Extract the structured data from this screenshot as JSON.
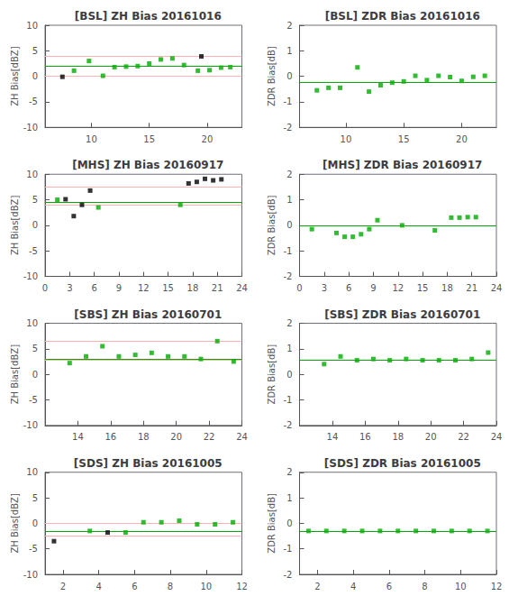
{
  "chart_data": [
    {
      "type": "scatter",
      "title": "[BSL] ZH Bias 20161016",
      "ylabel": "ZH Bias[dBZ]",
      "xlim": [
        6,
        23
      ],
      "ylim": [
        -10,
        10
      ],
      "xticks": [
        10,
        15,
        20
      ],
      "yticks": [
        -10,
        -5,
        0,
        5,
        10
      ],
      "grid": false,
      "series": [
        {
          "type": "hline",
          "color": "#ffb0b0",
          "values": [
            4.0,
            0.0
          ]
        },
        {
          "type": "hline",
          "color": "#00aa00",
          "values": [
            2.0
          ]
        },
        {
          "type": "scatter",
          "marker": "square",
          "color": "#00aa00",
          "x": [
            8.5,
            9.8,
            11.0,
            12.0,
            13.0,
            14.0,
            15.0,
            16.0,
            17.0,
            18.0,
            19.2,
            20.2,
            21.2,
            22.0
          ],
          "values": [
            1.1,
            3.0,
            0.1,
            1.8,
            1.9,
            2.0,
            2.5,
            3.3,
            3.5,
            2.2,
            1.1,
            1.2,
            1.7,
            1.8
          ]
        },
        {
          "type": "scatter",
          "marker": "square",
          "color": "#000000",
          "x": [
            7.5,
            19.5
          ],
          "values": [
            -0.1,
            3.9
          ]
        }
      ]
    },
    {
      "type": "scatter",
      "title": "[BSL] ZDR Bias 20161016",
      "ylabel": "ZDR Bias[dB]",
      "xlim": [
        6,
        23
      ],
      "ylim": [
        -2,
        2
      ],
      "xticks": [
        10,
        15,
        20
      ],
      "yticks": [
        -2,
        -1,
        0,
        1,
        2
      ],
      "grid": false,
      "series": [
        {
          "type": "hline",
          "color": "#00aa00",
          "values": [
            -0.25
          ]
        },
        {
          "type": "scatter",
          "marker": "square",
          "color": "#00aa00",
          "x": [
            7.5,
            8.5,
            9.5,
            11.0,
            12.0,
            13.0,
            14.0,
            15.0,
            16.0,
            17.0,
            18.0,
            19.0,
            20.0,
            21.0,
            22.0
          ],
          "values": [
            -0.55,
            -0.45,
            -0.45,
            0.35,
            -0.6,
            -0.35,
            -0.25,
            -0.2,
            0.02,
            -0.15,
            0.02,
            -0.03,
            -0.18,
            -0.02,
            0.02
          ]
        }
      ]
    },
    {
      "type": "scatter",
      "title": "[MHS] ZH Bias 20160917",
      "ylabel": "ZH Bias[dBZ]",
      "xlim": [
        0,
        24
      ],
      "ylim": [
        -10,
        10
      ],
      "xticks": [
        0,
        3,
        6,
        9,
        12,
        15,
        18,
        21,
        24
      ],
      "yticks": [
        -10,
        -5,
        0,
        5,
        10
      ],
      "grid": false,
      "series": [
        {
          "type": "hline",
          "color": "#ffb0b0",
          "values": [
            7.5,
            4.0
          ]
        },
        {
          "type": "hline",
          "color": "#00aa00",
          "values": [
            4.5
          ]
        },
        {
          "type": "scatter",
          "marker": "square",
          "color": "#00aa00",
          "x": [
            1.5,
            6.5,
            16.5
          ],
          "values": [
            5.0,
            3.5,
            4.0
          ]
        },
        {
          "type": "scatter",
          "marker": "square",
          "color": "#000000",
          "x": [
            2.5,
            3.5,
            4.5,
            5.5,
            17.5,
            18.5,
            19.5,
            20.5,
            21.5
          ],
          "values": [
            5.1,
            1.8,
            4.0,
            6.8,
            8.2,
            8.5,
            9.1,
            8.8,
            9.0
          ]
        }
      ]
    },
    {
      "type": "scatter",
      "title": "[MHS] ZDR Bias 20160917",
      "ylabel": "ZDR Bias[dB]",
      "xlim": [
        0,
        24
      ],
      "ylim": [
        -2,
        2
      ],
      "xticks": [
        0,
        3,
        6,
        9,
        12,
        15,
        18,
        21,
        24
      ],
      "yticks": [
        -2,
        -1,
        0,
        1,
        2
      ],
      "grid": false,
      "series": [
        {
          "type": "hline",
          "color": "#00aa00",
          "values": [
            0.0
          ]
        },
        {
          "type": "scatter",
          "marker": "square",
          "color": "#00aa00",
          "x": [
            1.5,
            4.5,
            5.5,
            6.5,
            7.5,
            8.5,
            9.5,
            12.5,
            16.5,
            18.5,
            19.5,
            20.5,
            21.5
          ],
          "values": [
            -0.15,
            -0.3,
            -0.45,
            -0.45,
            -0.35,
            -0.15,
            0.2,
            0.0,
            -0.2,
            0.3,
            0.3,
            0.32,
            0.32
          ]
        }
      ]
    },
    {
      "type": "scatter",
      "title": "[SBS] ZH Bias 20160701",
      "ylabel": "ZH Bias[dBZ]",
      "xlim": [
        12,
        24
      ],
      "ylim": [
        -10,
        10
      ],
      "xticks": [
        14,
        16,
        18,
        20,
        22,
        24
      ],
      "yticks": [
        -10,
        -5,
        0,
        5,
        10
      ],
      "grid": false,
      "series": [
        {
          "type": "hline",
          "color": "#ffb0b0",
          "values": [
            6.5,
            2.8
          ]
        },
        {
          "type": "hline",
          "color": "#00aa00",
          "values": [
            3.0
          ]
        },
        {
          "type": "scatter",
          "marker": "square",
          "color": "#00aa00",
          "x": [
            13.5,
            14.5,
            15.5,
            16.5,
            17.5,
            18.5,
            19.5,
            20.5,
            21.5,
            22.5,
            23.5
          ],
          "values": [
            2.2,
            3.5,
            5.5,
            3.5,
            3.8,
            4.2,
            3.5,
            3.5,
            3.0,
            6.5,
            2.5
          ]
        }
      ]
    },
    {
      "type": "scatter",
      "title": "[SBS] ZDR Bias 20160701",
      "ylabel": "ZDR Bias[dB]",
      "xlim": [
        12,
        24
      ],
      "ylim": [
        -2,
        2
      ],
      "xticks": [
        14,
        16,
        18,
        20,
        22,
        24
      ],
      "yticks": [
        -2,
        -1,
        0,
        1,
        2
      ],
      "grid": false,
      "series": [
        {
          "type": "hline",
          "color": "#00aa00",
          "values": [
            0.55
          ]
        },
        {
          "type": "scatter",
          "marker": "square",
          "color": "#00aa00",
          "x": [
            13.5,
            14.5,
            15.5,
            16.5,
            17.5,
            18.5,
            19.5,
            20.5,
            21.5,
            22.5,
            23.5
          ],
          "values": [
            0.4,
            0.7,
            0.55,
            0.6,
            0.55,
            0.6,
            0.55,
            0.55,
            0.55,
            0.6,
            0.85
          ]
        }
      ]
    },
    {
      "type": "scatter",
      "title": "[SDS] ZH Bias 20161005",
      "ylabel": "ZH Bias[dBZ]",
      "xlim": [
        1,
        12
      ],
      "ylim": [
        -10,
        10
      ],
      "xticks": [
        2,
        4,
        6,
        8,
        10,
        12
      ],
      "yticks": [
        -10,
        -5,
        0,
        5,
        10
      ],
      "grid": false,
      "series": [
        {
          "type": "hline",
          "color": "#ffb0b0",
          "values": [
            0.0,
            -2.5
          ]
        },
        {
          "type": "hline",
          "color": "#00aa00",
          "values": [
            -1.5
          ]
        },
        {
          "type": "scatter",
          "marker": "square",
          "color": "#00aa00",
          "x": [
            3.5,
            5.5,
            6.5,
            7.5,
            8.5,
            9.5,
            10.5,
            11.5
          ],
          "values": [
            -1.5,
            -1.8,
            0.2,
            0.2,
            0.5,
            -0.2,
            -0.2,
            0.2
          ]
        },
        {
          "type": "scatter",
          "marker": "square",
          "color": "#000000",
          "x": [
            1.5,
            4.5
          ],
          "values": [
            -3.5,
            -1.8
          ]
        }
      ]
    },
    {
      "type": "scatter",
      "title": "[SDS] ZDR Bias 20161005",
      "ylabel": "ZDR Bias[dB]",
      "xlim": [
        1,
        12
      ],
      "ylim": [
        -2,
        2
      ],
      "xticks": [
        2,
        4,
        6,
        8,
        10,
        12
      ],
      "yticks": [
        -2,
        -1,
        0,
        1,
        2
      ],
      "grid": false,
      "series": [
        {
          "type": "hline",
          "color": "#00aa00",
          "values": [
            -0.3
          ]
        },
        {
          "type": "scatter",
          "marker": "square",
          "color": "#00aa00",
          "x": [
            1.5,
            2.5,
            3.5,
            4.5,
            5.5,
            6.5,
            7.5,
            8.5,
            9.5,
            10.5,
            11.5
          ],
          "values": [
            -0.3,
            -0.3,
            -0.3,
            -0.3,
            -0.3,
            -0.3,
            -0.3,
            -0.3,
            -0.3,
            -0.3,
            -0.3
          ]
        }
      ]
    }
  ]
}
